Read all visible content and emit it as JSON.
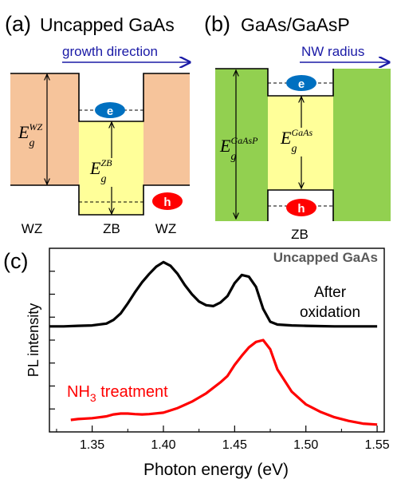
{
  "panel_a": {
    "letter": "(a)",
    "title": "Uncapped GaAs",
    "arrow_label": "growth direction",
    "wz_gap": {
      "symbol": "E",
      "sub": "g",
      "sup": "WZ"
    },
    "zb_gap": {
      "symbol": "E",
      "sub": "g",
      "sup": "ZB"
    },
    "electron": "e",
    "hole": "h",
    "region_labels": [
      "WZ",
      "ZB",
      "WZ"
    ]
  },
  "panel_b": {
    "letter": "(b)",
    "title": "GaAs/GaAsP",
    "arrow_label": "NW radius",
    "outer_gap": {
      "symbol": "E",
      "sub": "g",
      "sup": "GaAsP"
    },
    "inner_gap": {
      "symbol": "E",
      "sub": "g",
      "sup": "GaAs"
    },
    "electron": "e",
    "hole": "h",
    "region_label": "ZB"
  },
  "panel_c": {
    "letter": "(c)",
    "inset_title": "Uncapped GaAs",
    "label_after_1": "After",
    "label_after_2": "oxidation",
    "label_nh3_pre": "NH",
    "label_nh3_sub": "3",
    "label_nh3_post": " treatment"
  },
  "colors": {
    "wz_fill": "#f6c49b",
    "zb_fill": "#ffff99",
    "gaasp_fill": "#92d050",
    "electron": "#0070c0",
    "hole": "#ff0000",
    "arrow": "#1a1aa6",
    "after_curve": "#000000",
    "nh3_curve": "#ff0000",
    "inset_title": "#595959"
  },
  "chart_data": {
    "type": "line",
    "xlabel": "Photon energy (eV)",
    "ylabel": "PL intensity",
    "xlim": [
      1.32,
      1.555
    ],
    "ylim": [
      0,
      1
    ],
    "xticks": [
      1.35,
      1.4,
      1.45,
      1.5,
      1.55
    ],
    "xtick_labels": [
      "1.35",
      "1.40",
      "1.45",
      "1.50",
      "1.55"
    ],
    "series": [
      {
        "name": "After oxidation",
        "x": [
          1.32,
          1.33,
          1.34,
          1.35,
          1.36,
          1.365,
          1.37,
          1.375,
          1.38,
          1.385,
          1.39,
          1.395,
          1.4,
          1.405,
          1.41,
          1.415,
          1.42,
          1.425,
          1.43,
          1.435,
          1.44,
          1.445,
          1.45,
          1.455,
          1.46,
          1.465,
          1.47,
          1.475,
          1.48,
          1.49,
          1.5,
          1.51,
          1.52,
          1.53,
          1.55
        ],
        "values": [
          0.575,
          0.575,
          0.578,
          0.58,
          0.59,
          0.61,
          0.645,
          0.7,
          0.76,
          0.815,
          0.86,
          0.9,
          0.925,
          0.905,
          0.86,
          0.8,
          0.75,
          0.71,
          0.69,
          0.685,
          0.705,
          0.74,
          0.81,
          0.855,
          0.845,
          0.79,
          0.67,
          0.6,
          0.585,
          0.58,
          0.578,
          0.576,
          0.575,
          0.575,
          0.575
        ]
      },
      {
        "name": "NH3 treatment",
        "x": [
          1.335,
          1.34,
          1.35,
          1.36,
          1.365,
          1.37,
          1.375,
          1.38,
          1.385,
          1.39,
          1.4,
          1.41,
          1.42,
          1.43,
          1.44,
          1.445,
          1.45,
          1.455,
          1.46,
          1.465,
          1.47,
          1.475,
          1.48,
          1.49,
          1.5,
          1.51,
          1.52,
          1.53,
          1.54,
          1.55
        ],
        "values": [
          0.065,
          0.07,
          0.075,
          0.085,
          0.095,
          0.1,
          0.1,
          0.097,
          0.095,
          0.097,
          0.105,
          0.13,
          0.165,
          0.21,
          0.27,
          0.305,
          0.365,
          0.415,
          0.46,
          0.49,
          0.5,
          0.45,
          0.34,
          0.22,
          0.15,
          0.11,
          0.08,
          0.06,
          0.045,
          0.04
        ]
      }
    ]
  }
}
